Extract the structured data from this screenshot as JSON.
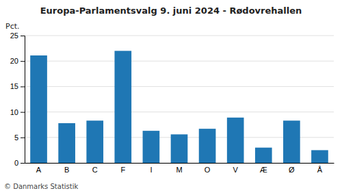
{
  "chart_data": {
    "type": "bar",
    "title": "Europa-Parlamentsvalg 9. juni 2024 - Rødovrehallen",
    "categories": [
      "A",
      "B",
      "C",
      "F",
      "I",
      "M",
      "O",
      "V",
      "Æ",
      "Ø",
      "Å"
    ],
    "values": [
      21.1,
      7.8,
      8.3,
      22.0,
      6.3,
      5.6,
      6.7,
      8.9,
      3.0,
      8.3,
      2.5
    ],
    "ylabel": "Pct.",
    "footer": "© Danmarks Statistik",
    "ylim": [
      0,
      25
    ],
    "yticks": [
      0,
      5,
      10,
      15,
      20,
      25
    ],
    "grid": true
  }
}
